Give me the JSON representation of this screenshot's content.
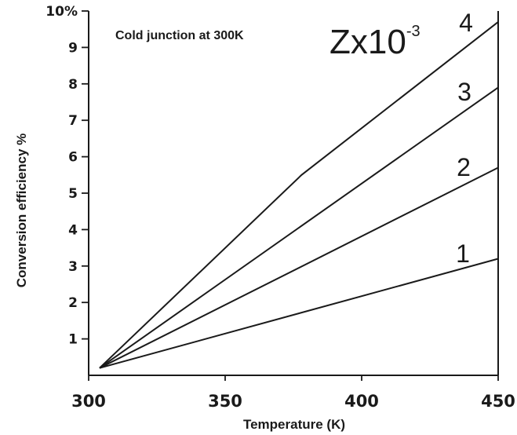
{
  "chart_data": {
    "type": "line",
    "xlabel": "Temperature (K)",
    "ylabel": "Conversion efficiency  %",
    "annotation": "Cold junction at 300K",
    "series_group_label": {
      "base": "Zx10",
      "exponent": "-3"
    },
    "xlim": [
      300,
      450
    ],
    "ylim": [
      0,
      10
    ],
    "x_ticks": [
      {
        "value": 300,
        "label": "300"
      },
      {
        "value": 350,
        "label": "350"
      },
      {
        "value": 400,
        "label": "400"
      },
      {
        "value": 450,
        "label": "450"
      }
    ],
    "y_ticks": [
      {
        "value": 1,
        "label": "1"
      },
      {
        "value": 2,
        "label": "2"
      },
      {
        "value": 3,
        "label": "3"
      },
      {
        "value": 4,
        "label": "4"
      },
      {
        "value": 5,
        "label": "5"
      },
      {
        "value": 6,
        "label": "6"
      },
      {
        "value": 7,
        "label": "7"
      },
      {
        "value": 8,
        "label": "8"
      },
      {
        "value": 9,
        "label": "9"
      },
      {
        "value": 10,
        "label": "10%"
      }
    ],
    "series": [
      {
        "name": "1",
        "x": [
          304,
          450
        ],
        "y": [
          0.2,
          3.2
        ]
      },
      {
        "name": "2",
        "x": [
          304,
          450
        ],
        "y": [
          0.2,
          5.7
        ]
      },
      {
        "name": "3",
        "x": [
          304,
          450
        ],
        "y": [
          0.2,
          7.9
        ]
      },
      {
        "name": "4",
        "x": [
          304,
          378,
          450
        ],
        "y": [
          0.2,
          5.5,
          9.7
        ]
      }
    ],
    "grid": false,
    "line_color": "#1a1a1a"
  }
}
